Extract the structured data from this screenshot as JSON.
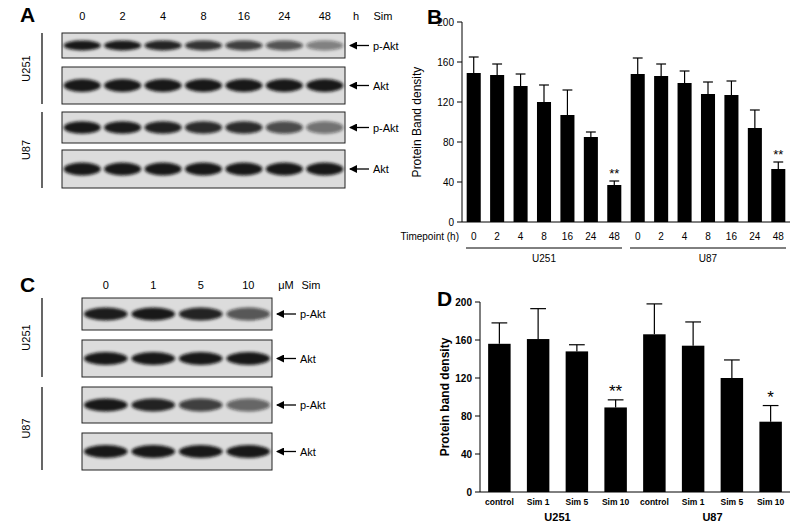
{
  "chart_data": [
    {
      "panel": "B",
      "type": "bar",
      "ylabel": "Protein Band density",
      "x_label": "Timepoint (h)",
      "categories": [
        "0",
        "2",
        "4",
        "8",
        "16",
        "24",
        "48"
      ],
      "ylim": [
        0,
        200
      ],
      "yticks": [
        0,
        40,
        80,
        120,
        160,
        200
      ],
      "series": [
        {
          "name": "U251",
          "color": "#000000",
          "values": [
            149,
            147,
            136,
            120,
            107,
            85,
            37
          ],
          "errors": [
            16,
            11,
            12,
            17,
            25,
            5,
            4
          ],
          "significance": [
            null,
            null,
            null,
            null,
            null,
            null,
            "**"
          ]
        },
        {
          "name": "U87",
          "color": "#000000",
          "values": [
            148,
            146,
            139,
            128,
            127,
            94,
            53
          ],
          "errors": [
            16,
            12,
            12,
            12,
            14,
            18,
            7
          ],
          "significance": [
            null,
            null,
            null,
            null,
            null,
            null,
            "**"
          ]
        }
      ]
    },
    {
      "panel": "D",
      "type": "bar",
      "ylabel": "Protein band density",
      "categories": [
        "control",
        "Sim 1",
        "Sim 5",
        "Sim 10"
      ],
      "ylim": [
        0,
        200
      ],
      "yticks": [
        0,
        40,
        80,
        120,
        160,
        200
      ],
      "series": [
        {
          "name": "U251",
          "color": "#000000",
          "values": [
            156,
            161,
            148,
            89
          ],
          "errors": [
            22,
            32,
            7,
            8
          ],
          "significance": [
            null,
            null,
            null,
            "**"
          ]
        },
        {
          "name": "U87",
          "color": "#000000",
          "values": [
            166,
            154,
            120,
            74
          ],
          "errors": [
            32,
            25,
            19,
            17
          ],
          "significance": [
            null,
            null,
            null,
            "*"
          ]
        }
      ]
    }
  ],
  "blots": [
    {
      "panel": "A",
      "lanes": [
        "0",
        "2",
        "4",
        "8",
        "16",
        "24",
        "48"
      ],
      "unit": "h",
      "treatment": "Sim",
      "cell_lines": [
        {
          "name": "U251",
          "rows": [
            "p-Akt",
            "Akt"
          ]
        },
        {
          "name": "U87",
          "rows": [
            "p-Akt",
            "Akt"
          ]
        }
      ]
    },
    {
      "panel": "C",
      "lanes": [
        "0",
        "1",
        "5",
        "10"
      ],
      "unit": "μM",
      "treatment": "Sim",
      "cell_lines": [
        {
          "name": "U251",
          "rows": [
            "p-Akt",
            "Akt"
          ]
        },
        {
          "name": "U87",
          "rows": [
            "p-Akt",
            "Akt"
          ]
        }
      ]
    }
  ]
}
